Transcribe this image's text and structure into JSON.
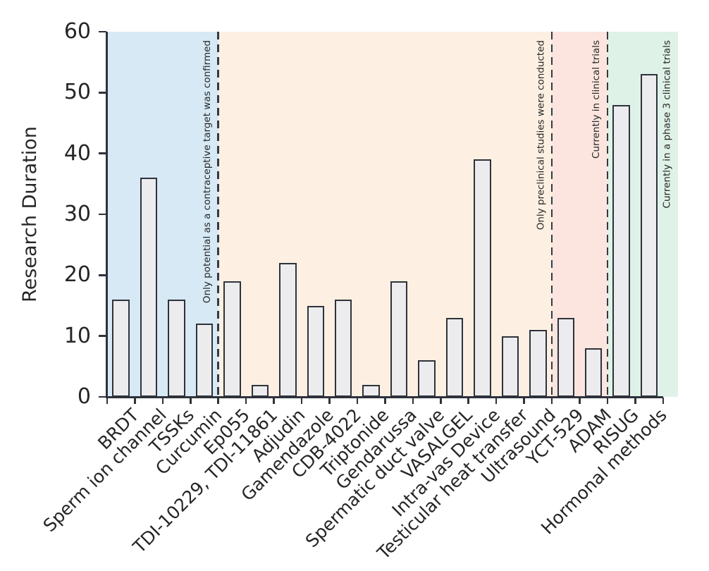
{
  "chart_data": {
    "type": "bar",
    "title": "",
    "xlabel": "",
    "ylabel": "Research Duration",
    "ylim": [
      0,
      60
    ],
    "yticks": [
      0,
      10,
      20,
      30,
      40,
      50,
      60
    ],
    "grid": false,
    "legend": null,
    "bar_fill_color": "#ececee",
    "bar_edge_color": "#2e323b",
    "categories": [
      "BRDT",
      "Sperm ion channel",
      "TSSKs",
      "Curcumin",
      "Ep055",
      "TDI-10229, TDI-11861",
      "Adjudin",
      "Gamendazole",
      "CDB-4022",
      "Triptonide",
      "Gendarussa",
      "Spermatic duct valve",
      "VASALGEL",
      "Intra-vas Device",
      "Testicular heat transfer",
      "Ultrasound",
      "YCT-529",
      "ADAM",
      "RISUG",
      "Hormonal methods"
    ],
    "values": [
      16,
      36,
      16,
      12,
      19,
      2,
      22,
      15,
      16,
      2,
      19,
      6,
      13,
      39,
      10,
      11,
      13,
      8,
      48,
      53
    ],
    "regions": [
      {
        "label": "Only potential as a contraceptive target was confirmed",
        "color": "#d6e9f5",
        "category_span": [
          0,
          4
        ]
      },
      {
        "label": "Only preclinical studies were conducted",
        "color": "#fdf0e2",
        "category_span": [
          4,
          16
        ]
      },
      {
        "label": "Currently in clinical trials",
        "color": "#fce5de",
        "category_span": [
          16,
          18
        ]
      },
      {
        "label": "Currently in a phase 3 clinical trials",
        "color": "#dff2e8",
        "category_span": [
          18,
          20
        ]
      }
    ]
  }
}
